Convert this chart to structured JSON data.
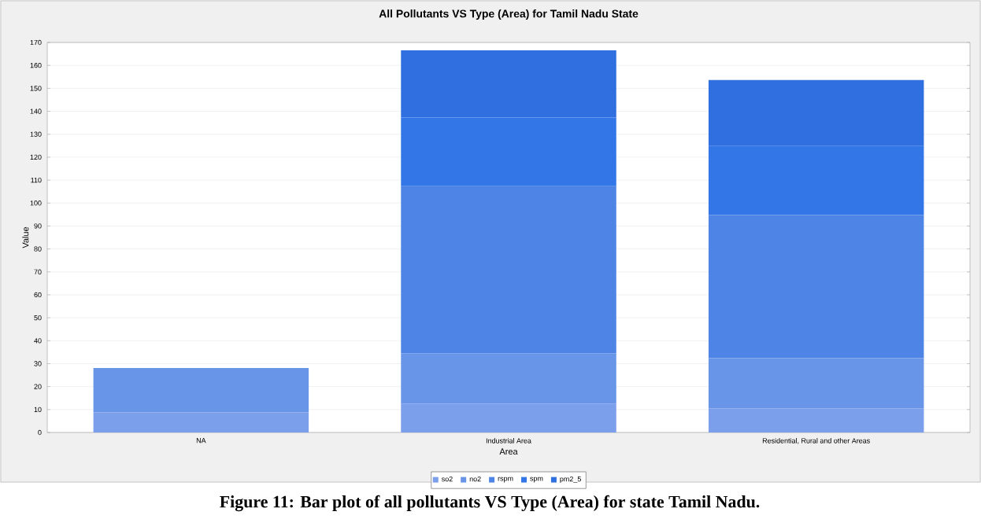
{
  "chart_data": {
    "type": "bar",
    "stacked": true,
    "title": "All Pollutants VS Type (Area) for  Tamil Nadu State",
    "xlabel": "Area",
    "ylabel": "Value",
    "categories": [
      "NA",
      "Industrial Area",
      "Residential, Rural and other Areas"
    ],
    "series": [
      {
        "name": "so2",
        "color": "#7b9fea",
        "values": [
          8.7,
          12.6,
          10.5
        ]
      },
      {
        "name": "no2",
        "color": "#6895e8",
        "values": [
          19.4,
          21.9,
          21.9
        ]
      },
      {
        "name": "rspm",
        "color": "#4e84e6",
        "values": [
          0,
          72.9,
          62.4
        ]
      },
      {
        "name": "spm",
        "color": "#3276e8",
        "values": [
          0,
          29.9,
          30.0
        ]
      },
      {
        "name": "pm2_5",
        "color": "#306fe0",
        "values": [
          0,
          29.3,
          28.8
        ]
      }
    ],
    "ylim": [
      0,
      170
    ],
    "yticks": [
      0,
      10,
      20,
      30,
      40,
      50,
      60,
      70,
      80,
      90,
      100,
      110,
      120,
      130,
      140,
      150,
      160,
      170
    ],
    "grid": "y",
    "legend": "bottom",
    "annotations": [
      "Figure 11: Bar plot of all pollutants VS Type (Area) for state Tamil Nadu."
    ]
  }
}
